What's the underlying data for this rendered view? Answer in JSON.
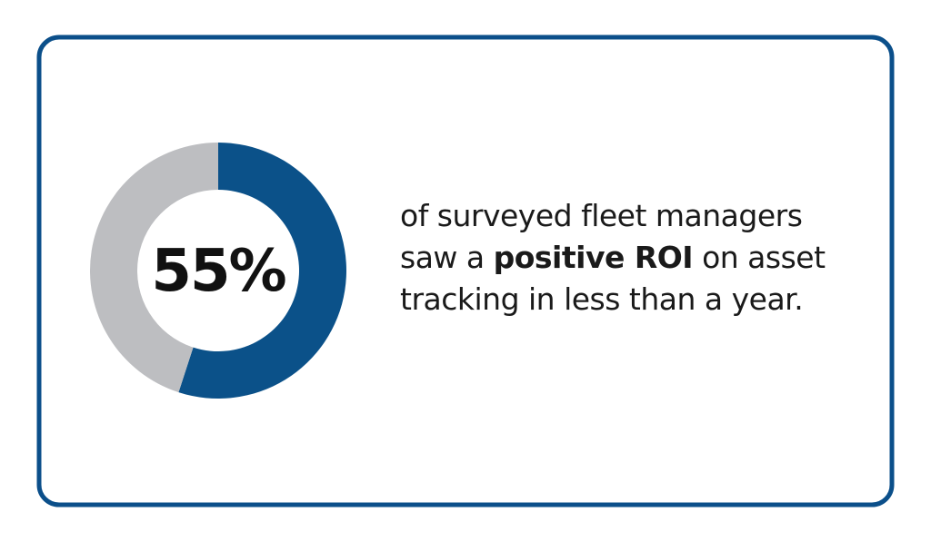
{
  "chart_data": {
    "type": "donut",
    "values": [
      55,
      45
    ],
    "value_labels": [
      "55%",
      null
    ],
    "colors": [
      "#0b5189",
      "#bdbec1"
    ],
    "caption_lines": [
      [
        {
          "text": "of surveyed fleet managers",
          "bold": false
        }
      ],
      [
        {
          "text": "saw a ",
          "bold": false
        },
        {
          "text": "positive ROI",
          "bold": true
        },
        {
          "text": " on asset",
          "bold": false
        }
      ],
      [
        {
          "text": "tracking in less than a year.",
          "bold": false
        }
      ]
    ]
  }
}
